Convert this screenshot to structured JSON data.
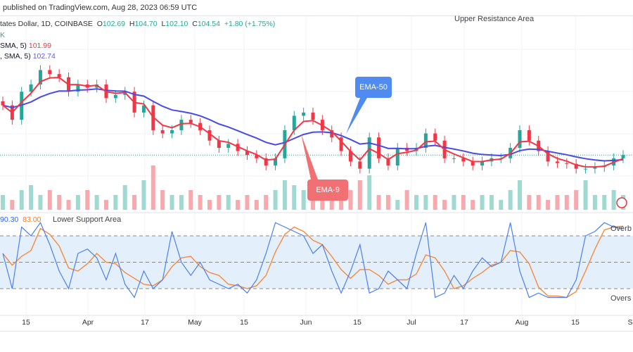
{
  "header": {
    "published": "published on TradingView.com, Aug 28, 2023 06:59 UTC"
  },
  "legend": {
    "symbol": "tates Dollar, 1D, COINBASE",
    "open_label": "O",
    "open": "102.69",
    "high_label": "H",
    "high": "104.70",
    "low_label": "L",
    "low": "102.10",
    "close_label": "C",
    "close": "104.54",
    "change": "+1.80 (+1.75%)",
    "marker": "K",
    "ema9_label": "SMA, 5)",
    "ema9_value": "101.99",
    "ema50_label": ", SMA, 5)",
    "ema50_value": "102.74"
  },
  "annotations": {
    "upper": "Upper Resistance Area",
    "lower": "Lower Support Area",
    "ema50": "EMA-50",
    "ema9": "EMA-9",
    "overbought": "Overb",
    "oversold": "Overs"
  },
  "stoch_values": {
    "k": "90.30",
    "d": "83.00"
  },
  "colors": {
    "up": "#26a69a",
    "down": "#f23645",
    "ema9": "#f23645",
    "ema50": "#4a4ae8",
    "stoch_k": "#4c7ff0",
    "stoch_d": "#f58a3c",
    "band": "#e3f0fc"
  },
  "chart_data": [
    {
      "type": "candlestick",
      "series_note": "",
      "ylim": [
        97.5,
        121.2
      ],
      "x_ticks": [
        "15",
        "Apr",
        "17",
        "May",
        "15",
        "Jun",
        "15",
        "Jul",
        "17",
        "Aug",
        "15",
        "S"
      ],
      "close": [
        110.7,
        108.9,
        112.4,
        113.3,
        115.1,
        114.6,
        114.2,
        112.4,
        113.3,
        112.9,
        113.3,
        111.6,
        112.0,
        112.4,
        109.8,
        110.7,
        107.6,
        107.2,
        107.6,
        108.9,
        108.5,
        107.6,
        106.3,
        105.4,
        105.9,
        105.0,
        104.5,
        104.1,
        103.2,
        104.1,
        107.6,
        109.4,
        109.8,
        108.9,
        107.6,
        106.7,
        105.0,
        103.7,
        102.8,
        106.7,
        104.1,
        103.2,
        105.4,
        105.0,
        105.4,
        107.2,
        106.3,
        104.1,
        104.1,
        103.7,
        103.2,
        103.7,
        104.1,
        104.1,
        105.4,
        107.6,
        106.3,
        105.0,
        103.7,
        103.5,
        103.4,
        102.8,
        102.8,
        103.0,
        103.2,
        104.1,
        104.5
      ],
      "volume": [
        3,
        2,
        4,
        5,
        3,
        4,
        3,
        2,
        3,
        4,
        3,
        2,
        3,
        5,
        3,
        6,
        9,
        4,
        3,
        3,
        4,
        3,
        2,
        3,
        3,
        2,
        3,
        2,
        3,
        4,
        6,
        5,
        4,
        3,
        4,
        5,
        3,
        4,
        6,
        7,
        3,
        3,
        2,
        4,
        3,
        3,
        3,
        2,
        3,
        3,
        2,
        3,
        3,
        2,
        4,
        6,
        3,
        3,
        2,
        3,
        3,
        4,
        6,
        3,
        3,
        4,
        3
      ],
      "ema_lines": [
        "EMA-9",
        "EMA-50"
      ]
    },
    {
      "type": "line",
      "ylim": [
        0,
        100
      ],
      "levels": [
        80,
        50,
        20
      ],
      "k": [
        60,
        20,
        90,
        80,
        95,
        70,
        40,
        20,
        60,
        65,
        55,
        30,
        60,
        25,
        10,
        40,
        20,
        30,
        85,
        50,
        35,
        50,
        30,
        25,
        20,
        25,
        15,
        30,
        60,
        95,
        90,
        85,
        80,
        60,
        70,
        40,
        15,
        40,
        70,
        15,
        20,
        40,
        30,
        20,
        60,
        95,
        10,
        15,
        35,
        20,
        40,
        55,
        45,
        50,
        95,
        40,
        10,
        15,
        10,
        10,
        10,
        30,
        80,
        85,
        95,
        90,
        88
      ]
    }
  ]
}
